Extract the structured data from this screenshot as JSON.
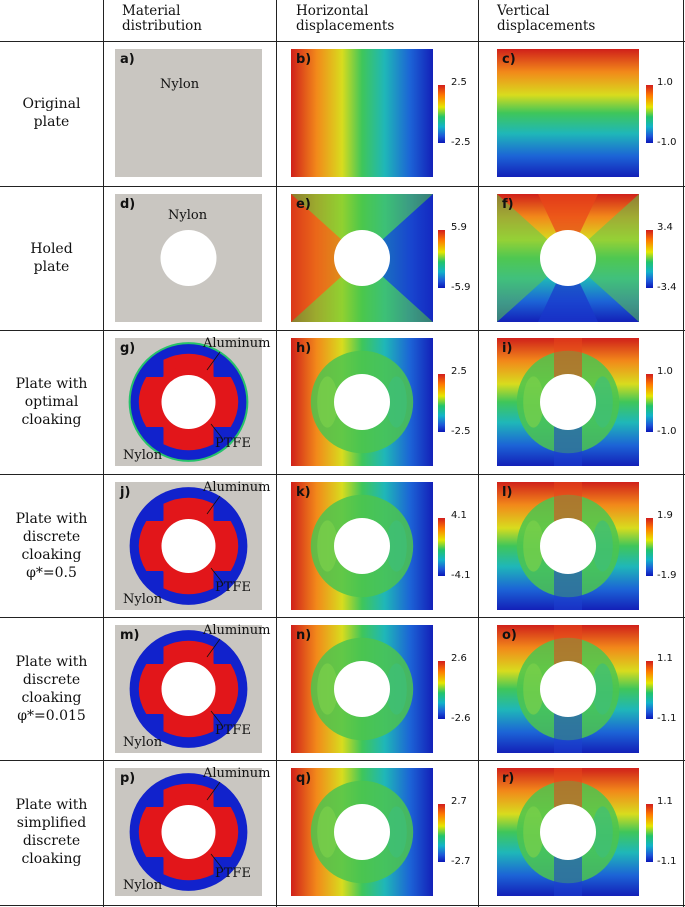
{
  "headers": {
    "material": [
      "Material",
      "distribution"
    ],
    "horizontal": [
      "Horizontal",
      "displacements"
    ],
    "vertical": [
      "Vertical",
      "displacements"
    ]
  },
  "rows": [
    {
      "label": [
        "Original",
        "plate"
      ],
      "material": {
        "tag": "a)",
        "nylon": "Nylon"
      },
      "horizontal": {
        "tag": "b)",
        "max": "2.5",
        "min": "-2.5"
      },
      "vertical": {
        "tag": "c)",
        "max": "1.0",
        "min": "-1.0"
      }
    },
    {
      "label": [
        "Holed",
        "plate"
      ],
      "material": {
        "tag": "d)",
        "nylon": "Nylon"
      },
      "horizontal": {
        "tag": "e)",
        "max": "5.9",
        "min": "-5.9"
      },
      "vertical": {
        "tag": "f)",
        "max": "3.4",
        "min": "-3.4"
      }
    },
    {
      "label": [
        "Plate with",
        "optimal",
        "cloaking"
      ],
      "material": {
        "tag": "g)",
        "aluminum": "Aluminum",
        "ptfe": "PTFE",
        "nylon": "Nylon"
      },
      "horizontal": {
        "tag": "h)",
        "max": "2.5",
        "min": "-2.5"
      },
      "vertical": {
        "tag": "i)",
        "max": "1.0",
        "min": "-1.0"
      }
    },
    {
      "label": [
        "Plate with",
        "discrete",
        "cloaking",
        "φ*=0.5"
      ],
      "material": {
        "tag": "j)",
        "aluminum": "Aluminum",
        "ptfe": "PTFE",
        "nylon": "Nylon"
      },
      "horizontal": {
        "tag": "k)",
        "max": "4.1",
        "min": "-4.1"
      },
      "vertical": {
        "tag": "l)",
        "max": "1.9",
        "min": "-1.9"
      }
    },
    {
      "label": [
        "Plate with",
        "discrete",
        "cloaking",
        "φ*=0.015"
      ],
      "material": {
        "tag": "m)",
        "aluminum": "Aluminum",
        "ptfe": "PTFE",
        "nylon": "Nylon"
      },
      "horizontal": {
        "tag": "n)",
        "max": "2.6",
        "min": "-2.6"
      },
      "vertical": {
        "tag": "o)",
        "max": "1.1",
        "min": "-1.1"
      }
    },
    {
      "label": [
        "Plate with",
        "simplified",
        "discrete",
        "cloaking"
      ],
      "material": {
        "tag": "p)",
        "aluminum": "Aluminum",
        "ptfe": "PTFE",
        "nylon": "Nylon"
      },
      "horizontal": {
        "tag": "q)",
        "max": "2.7",
        "min": "-2.7"
      },
      "vertical": {
        "tag": "r)",
        "max": "1.1",
        "min": "-1.1"
      }
    }
  ]
}
